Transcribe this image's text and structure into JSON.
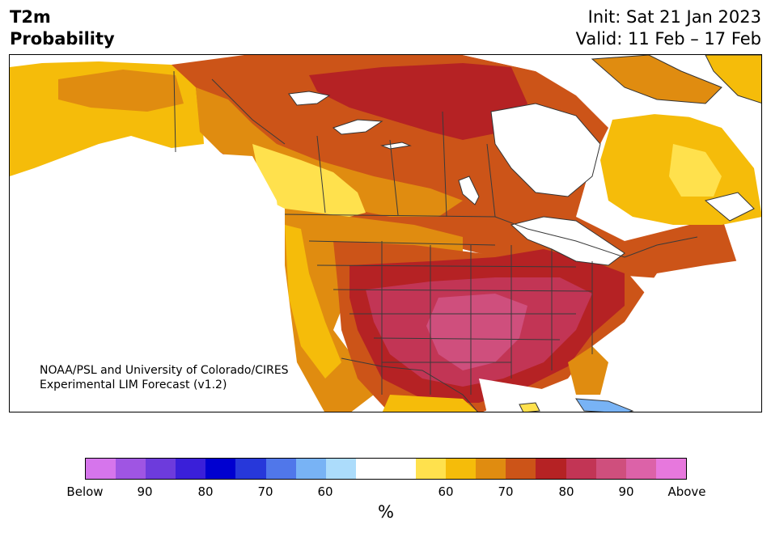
{
  "title": {
    "line1": "T2m",
    "line2": "Probability"
  },
  "dates": {
    "init": "Init: Sat 21 Jan 2023",
    "valid": "Valid: 11 Feb – 17 Feb"
  },
  "credit": {
    "line1": "NOAA/PSL and University of Colorado/CIRES",
    "line2": "Experimental LIM Forecast (v1.2)"
  },
  "colorbar": {
    "unit": "%",
    "colors": [
      "#d675ec",
      "#9f55e3",
      "#6d3bdc",
      "#3a1fd9",
      "#0000d0",
      "#2738da",
      "#5077ea",
      "#78b3f5",
      "#acdcfb",
      "#ffffff",
      "#ffffff",
      "#ffe14d",
      "#f5bc0a",
      "#e08c10",
      "#cc5418",
      "#b52224",
      "#c23555",
      "#cf4f7d",
      "#dc62a8",
      "#e778dd"
    ],
    "ticks": [
      "Below",
      "90",
      "80",
      "70",
      "60",
      "60",
      "70",
      "80",
      "90",
      "Above"
    ]
  },
  "legend_bins": {
    "below": [
      "Below",
      "95",
      "90",
      "85",
      "80",
      "75",
      "70",
      "65",
      "60",
      "55"
    ],
    "above": [
      "55",
      "60",
      "65",
      "70",
      "75",
      "80",
      "85",
      "90",
      "95",
      "Above"
    ]
  }
}
